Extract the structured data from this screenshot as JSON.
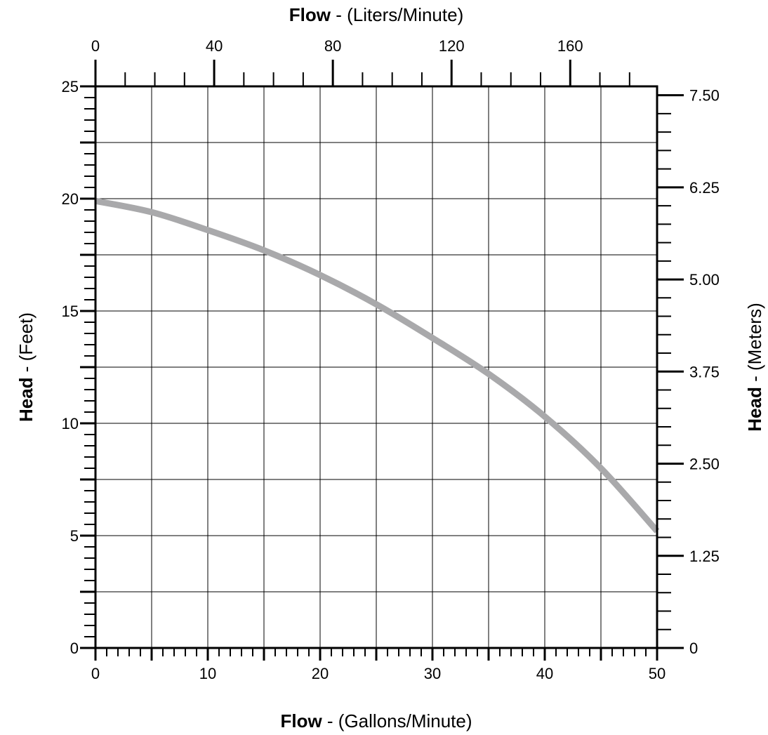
{
  "chart_data": {
    "type": "line",
    "x_label_bold": "Flow",
    "x_label_rest": " - (Gallons/Minute)",
    "x2_label_bold": "Flow",
    "x2_label_rest": " - (Liters/Minute)",
    "y_label_bold": "Head",
    "y_label_rest": " - (Feet)",
    "y2_label_bold": "Head",
    "y2_label_rest": " - (Meters)",
    "xlim": [
      0,
      50
    ],
    "ylim": [
      0,
      25
    ],
    "x2lim": [
      0,
      189.27
    ],
    "y2lim": [
      0,
      7.62
    ],
    "x_ticks": [
      "0",
      "10",
      "20",
      "30",
      "40",
      "50"
    ],
    "y_ticks": [
      "0",
      "5",
      "10",
      "15",
      "20",
      "25"
    ],
    "x2_ticks": [
      "0",
      "40",
      "80",
      "120",
      "160"
    ],
    "y2_ticks": [
      "0",
      "1.25",
      "2.50",
      "3.75",
      "5.00",
      "6.25",
      "7.50"
    ],
    "grid": true,
    "series": [
      {
        "color": "#a9a9ab",
        "x": [
          0,
          5,
          10,
          15,
          20,
          25,
          30,
          35,
          40,
          45,
          50
        ],
        "y": [
          19.9,
          19.4,
          18.6,
          17.7,
          16.6,
          15.3,
          13.8,
          12.2,
          10.3,
          8.0,
          5.2
        ]
      }
    ]
  }
}
